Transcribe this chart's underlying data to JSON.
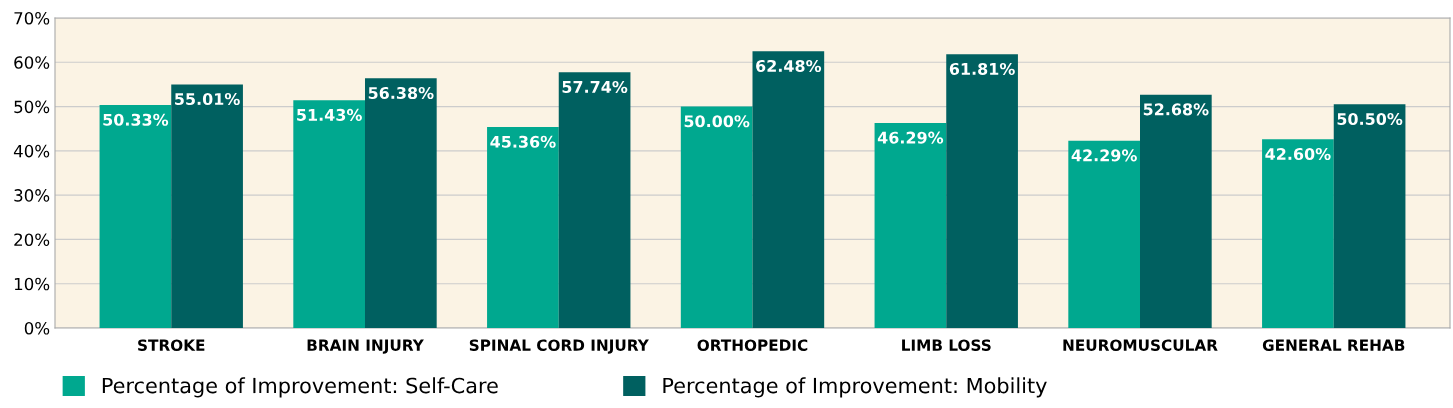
{
  "chart_data": {
    "type": "bar",
    "categories": [
      "STROKE",
      "BRAIN INJURY",
      "SPINAL CORD INJURY",
      "ORTHOPEDIC",
      "LIMB LOSS",
      "NEUROMUSCULAR",
      "GENERAL REHAB"
    ],
    "series": [
      {
        "name": "Percentage of Improvement: Self-Care",
        "color": "#00a88f",
        "values": [
          50.33,
          51.43,
          45.36,
          50.0,
          46.29,
          42.29,
          42.6
        ],
        "value_labels": [
          "50.33%",
          "51.43%",
          "45.36%",
          "50.00%",
          "46.29%",
          "42.29%",
          "42.60%"
        ]
      },
      {
        "name": "Percentage of Improvement: Mobility",
        "color": "#006060",
        "values": [
          55.01,
          56.38,
          57.74,
          62.48,
          61.81,
          52.68,
          50.5
        ],
        "value_labels": [
          "55.01%",
          "56.38%",
          "57.74%",
          "62.48%",
          "61.81%",
          "52.68%",
          "50.50%"
        ]
      }
    ],
    "ylim": [
      0,
      70
    ],
    "yticks": [
      {
        "value": 0,
        "label": "0%"
      },
      {
        "value": 10,
        "label": "10%"
      },
      {
        "value": 20,
        "label": "20%"
      },
      {
        "value": 30,
        "label": "30%"
      },
      {
        "value": 40,
        "label": "40%"
      },
      {
        "value": 50,
        "label": "50%"
      },
      {
        "value": 60,
        "label": "60%"
      },
      {
        "value": 70,
        "label": "70%"
      }
    ],
    "grid": "y",
    "legend": "bottom"
  }
}
